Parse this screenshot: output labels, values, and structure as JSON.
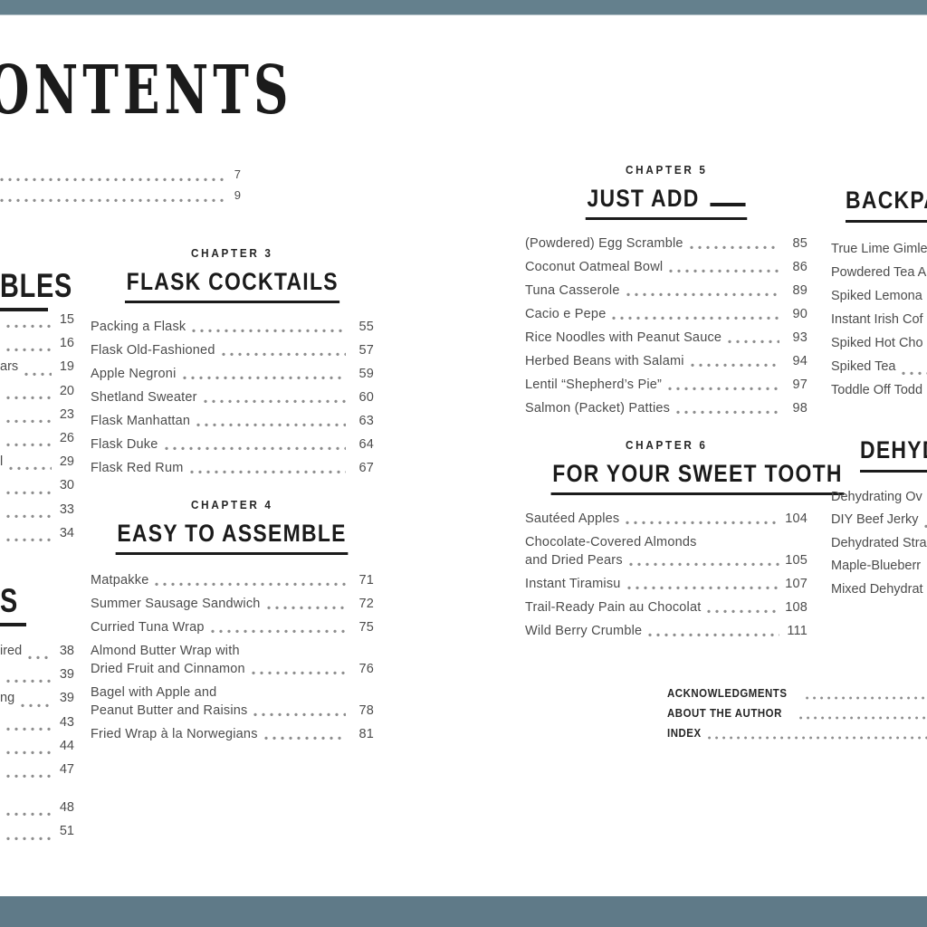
{
  "title": {
    "visible_text": "ONTENTS"
  },
  "colors": {
    "bar_top": "#64808d",
    "bar_bottom": "#5f7a88",
    "ink": "#1b1b1b",
    "body_text": "#4c4c4c",
    "dots": "#8d8d8d"
  },
  "front_matter": {
    "entries": [
      {
        "page": "7"
      },
      {
        "page": "9"
      }
    ]
  },
  "left_column": {
    "sections": [
      {
        "heading_visible": "BLES",
        "entries": [
          {
            "fragment": "",
            "page": "15"
          },
          {
            "fragment": "",
            "page": "16"
          },
          {
            "fragment": "ars",
            "page": "19"
          },
          {
            "fragment": "",
            "page": "20"
          },
          {
            "fragment": "",
            "page": "23"
          },
          {
            "fragment": "",
            "page": "26"
          },
          {
            "fragment": "l",
            "page": "29"
          },
          {
            "fragment": "",
            "page": "30"
          },
          {
            "fragment": "",
            "page": "33"
          },
          {
            "fragment": "",
            "page": "34"
          }
        ]
      },
      {
        "heading_visible": "S",
        "entries": [
          {
            "fragment": "ired",
            "page": "38"
          },
          {
            "fragment": "",
            "page": "39"
          },
          {
            "fragment": "ng",
            "page": "39"
          },
          {
            "fragment": "",
            "page": "43"
          },
          {
            "fragment": "",
            "page": "44"
          },
          {
            "fragment": "",
            "page": "47"
          },
          {
            "spacer": true
          },
          {
            "fragment": "",
            "page": "48"
          },
          {
            "fragment": "",
            "page": "51"
          }
        ]
      }
    ]
  },
  "column2": {
    "chapters": [
      {
        "label": "CHAPTER 3",
        "title": "FLASK COCKTAILS",
        "entries": [
          {
            "lines": [
              "Packing a Flask"
            ],
            "page": "55"
          },
          {
            "lines": [
              "Flask Old-Fashioned"
            ],
            "page": "57"
          },
          {
            "lines": [
              "Apple Negroni"
            ],
            "page": "59"
          },
          {
            "lines": [
              "Shetland Sweater"
            ],
            "page": "60"
          },
          {
            "lines": [
              "Flask Manhattan"
            ],
            "page": "63"
          },
          {
            "lines": [
              "Flask Duke"
            ],
            "page": "64"
          },
          {
            "lines": [
              "Flask Red Rum"
            ],
            "page": "67"
          }
        ]
      },
      {
        "label": "CHAPTER 4",
        "title": "EASY TO ASSEMBLE",
        "entries": [
          {
            "lines": [
              "Matpakke"
            ],
            "page": "71"
          },
          {
            "lines": [
              "Summer Sausage Sandwich"
            ],
            "page": "72"
          },
          {
            "lines": [
              "Curried Tuna Wrap"
            ],
            "page": "75"
          },
          {
            "lines": [
              "Almond Butter Wrap with",
              "Dried Fruit and Cinnamon"
            ],
            "page": "76"
          },
          {
            "lines": [
              "Bagel with Apple and",
              "Peanut Butter and Raisins"
            ],
            "page": "78"
          },
          {
            "lines": [
              "Fried Wrap à la Norwegians"
            ],
            "page": "81"
          }
        ]
      }
    ]
  },
  "column3": {
    "chapters": [
      {
        "label": "CHAPTER 5",
        "title": "JUST ADD",
        "title_has_blank": true,
        "entries": [
          {
            "lines": [
              "(Powdered) Egg Scramble"
            ],
            "page": "85"
          },
          {
            "lines": [
              "Coconut Oatmeal Bowl"
            ],
            "page": "86"
          },
          {
            "lines": [
              "Tuna Casserole"
            ],
            "page": "89"
          },
          {
            "lines": [
              "Cacio e Pepe"
            ],
            "page": "90"
          },
          {
            "lines": [
              "Rice Noodles with Peanut Sauce"
            ],
            "page": "93"
          },
          {
            "lines": [
              "Herbed Beans with Salami"
            ],
            "page": "94"
          },
          {
            "lines": [
              "Lentil “Shepherd’s Pie”"
            ],
            "page": "97"
          },
          {
            "lines": [
              "Salmon (Packet) Patties"
            ],
            "page": "98"
          }
        ]
      },
      {
        "label": "CHAPTER 6",
        "title": "FOR YOUR SWEET TOOTH",
        "entries": [
          {
            "lines": [
              "Sautéed Apples"
            ],
            "page": "104"
          },
          {
            "lines": [
              "Chocolate-Covered Almonds",
              "and Dried Pears"
            ],
            "page": "105"
          },
          {
            "lines": [
              "Instant Tiramisu"
            ],
            "page": "107"
          },
          {
            "lines": [
              "Trail-Ready Pain au Chocolat"
            ],
            "page": "108"
          },
          {
            "lines": [
              "Wild Berry Crumble"
            ],
            "page": "111"
          }
        ]
      }
    ]
  },
  "right_column": {
    "sections": [
      {
        "heading_visible": "BACKPA",
        "entries": [
          {
            "title": "True Lime Gimle"
          },
          {
            "title": "Powdered Tea A"
          },
          {
            "title": "Spiked Lemona"
          },
          {
            "title": "Instant Irish Cof"
          },
          {
            "title": "Spiked Hot Cho"
          },
          {
            "title": "Spiked Tea",
            "leader": true
          },
          {
            "title": "Toddle Off Todd"
          }
        ]
      },
      {
        "heading_visible": "DEHYD",
        "entries": [
          {
            "title": "Dehydrating Ov"
          },
          {
            "title": "DIY Beef Jerky",
            "leader": true
          },
          {
            "title": "Dehydrated Stra"
          },
          {
            "title": "Maple-Blueberr"
          },
          {
            "title": "Mixed Dehydrat"
          }
        ]
      }
    ]
  },
  "back_matter": {
    "entries": [
      {
        "label": "ACKNOWLEDGMENTS"
      },
      {
        "label": "ABOUT THE AUTHOR"
      },
      {
        "label": "INDEX"
      }
    ]
  }
}
